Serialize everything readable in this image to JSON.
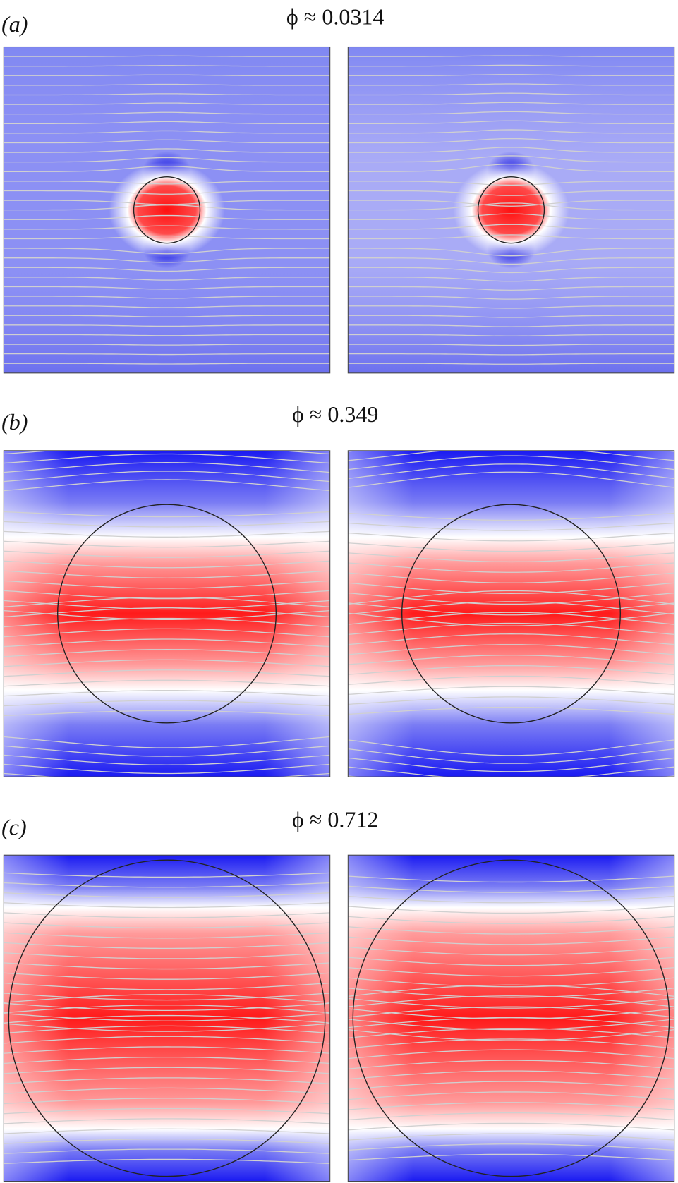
{
  "panels": [
    {
      "label": "(a)",
      "title": "ϕ ≈ 0.0314"
    },
    {
      "label": "(b)",
      "title": "ϕ ≈ 0.349"
    },
    {
      "label": "(c)",
      "title": "ϕ ≈ 0.712"
    }
  ]
}
